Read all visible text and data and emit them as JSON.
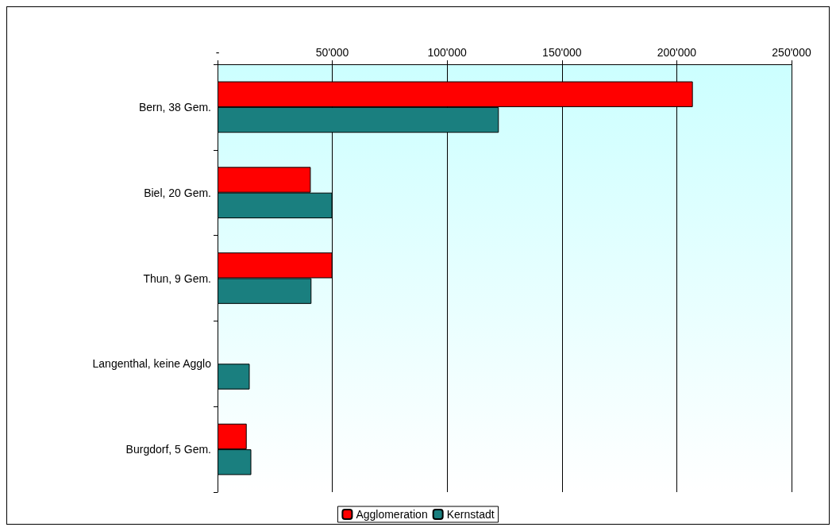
{
  "chart_data": {
    "type": "bar",
    "orientation": "horizontal",
    "categories": [
      "Bern, 38 Gem.",
      "Biel, 20 Gem.",
      "Thun, 9 Gem.",
      "Langenthal, keine Agglo",
      "Burgdorf, 5 Gem."
    ],
    "series": [
      {
        "name": "Agglomeration",
        "color": "#ff0000",
        "values": [
          207000,
          40600,
          50000,
          null,
          12700
        ]
      },
      {
        "name": "Kernstadt",
        "color": "#1a7f7f",
        "values": [
          122500,
          50000,
          40900,
          14000,
          14700
        ]
      }
    ],
    "xlim": [
      0,
      250000
    ],
    "xticks": [
      {
        "value": 0,
        "label": "-"
      },
      {
        "value": 50000,
        "label": "50'000"
      },
      {
        "value": 100000,
        "label": "100'000"
      },
      {
        "value": 150000,
        "label": "150'000"
      },
      {
        "value": 200000,
        "label": "200'000"
      },
      {
        "value": 250000,
        "label": "250'000"
      }
    ],
    "grid": "x",
    "legend": "bottom"
  }
}
